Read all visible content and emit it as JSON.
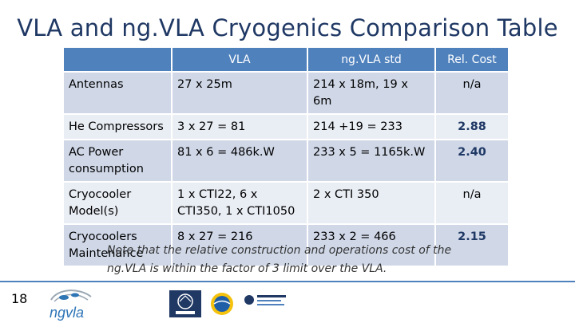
{
  "slide": {
    "title": "VLA and ng.VLA Cryogenics Comparison Table",
    "number": "18",
    "note": "Note that the relative construction and operations cost of the ng.VLA is within the factor of 3 limit over the VLA."
  },
  "table": {
    "headers": [
      "",
      "VLA",
      "ng.VLA std",
      "Rel. Cost"
    ],
    "rows": [
      [
        "Antennas",
        "27 x 25m",
        "214 x 18m, 19 x 6m",
        "n/a"
      ],
      [
        "He Compressors",
        "3 x 27 = 81",
        "214 +19 = 233",
        "2.88"
      ],
      [
        "AC Power consumption",
        "81 x 6 = 486k.W",
        "233 x 5 = 1165k.W",
        "2.40"
      ],
      [
        "Cryocooler Model(s)",
        "1 x CTI22, 6 x CTI350, 1 x CTI1050",
        "2 x CTI 350",
        "n/a"
      ],
      [
        "Cryocoolers Maintenance",
        "8 x 27 = 216",
        "233 x 2 = 466",
        "2.15"
      ]
    ]
  },
  "footer": {
    "logo_text": "ngvla",
    "accent_color": "#4f81bd",
    "title_color": "#1f3864"
  }
}
